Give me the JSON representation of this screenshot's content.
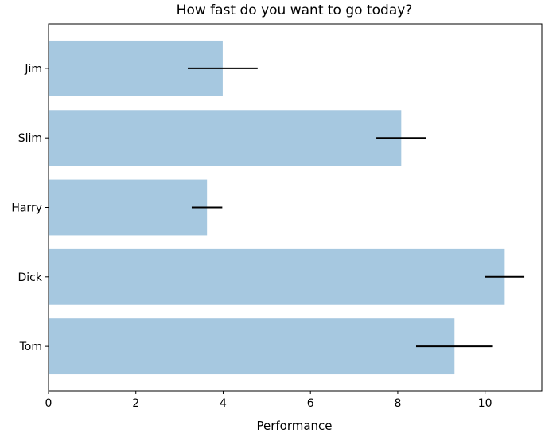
{
  "chart_data": {
    "type": "bar",
    "orientation": "horizontal",
    "title": "How fast do you want to go today?",
    "xlabel": "Performance",
    "ylabel": "",
    "categories": [
      "Tom",
      "Dick",
      "Harry",
      "Slim",
      "Jim"
    ],
    "values": [
      9.3,
      10.45,
      3.63,
      8.08,
      3.99
    ],
    "errors": [
      0.88,
      0.45,
      0.35,
      0.57,
      0.8
    ],
    "xlim": [
      0,
      11.3
    ],
    "xticks": [
      0,
      2,
      4,
      6,
      8,
      10
    ],
    "grid": false,
    "legend": "none",
    "colors": {
      "bar": "#a6c8e0",
      "bar_alpha": 1,
      "error": "#000000",
      "axis": "#000000"
    }
  }
}
